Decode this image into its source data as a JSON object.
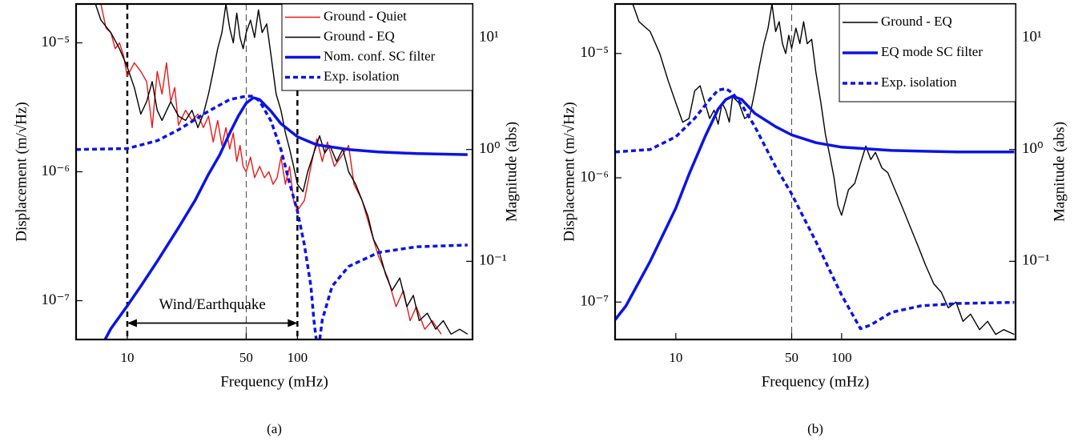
{
  "chart_data": [
    {
      "type": "line",
      "caption": "(a)",
      "xlabel": "Frequency (mHz)",
      "ylabel": "Displacement  (m/√Hz)",
      "y2label": "Magnitude (abs)",
      "log_x": true,
      "log_y": true,
      "legend": "upper right",
      "xlim": [
        5,
        1070
      ],
      "ylim": [
        5e-08,
        2e-05
      ],
      "y2lim": [
        0.02,
        20
      ],
      "xticks": [
        10,
        50,
        100
      ],
      "yticks": [
        {
          "value": 1e-07,
          "label": "10⁻⁷"
        },
        {
          "value": 1e-06,
          "label": "10⁻⁶"
        },
        {
          "value": 1e-05,
          "label": "10⁻⁵"
        }
      ],
      "y2ticks": [
        {
          "value": 0.1,
          "label": "10⁻¹"
        },
        {
          "value": 1,
          "label": "10⁰"
        },
        {
          "value": 10,
          "label": "10¹"
        }
      ],
      "vlines": [
        10,
        50,
        100
      ],
      "vline_styles": [
        "bold",
        "thin",
        "bold"
      ],
      "annotations": [
        {
          "text": "Wind/Earthquake",
          "x": [
            10,
            100
          ],
          "y": 6.7e-08
        }
      ],
      "series": [
        {
          "name": "Ground - Quiet",
          "color": "#e8191a",
          "style": "solid",
          "weight": "thin",
          "x": [
            7,
            7.5,
            8,
            8.5,
            9,
            9.5,
            10,
            11,
            12,
            13,
            14,
            15,
            16,
            17,
            18,
            19,
            20,
            22,
            24,
            26,
            28,
            30,
            32,
            34,
            36,
            38,
            40,
            42,
            44,
            46,
            48,
            50,
            53,
            56,
            60,
            64,
            68,
            72,
            76,
            80,
            85,
            90,
            95,
            100,
            110,
            120,
            130,
            140,
            150,
            165,
            180,
            200,
            215,
            240,
            270,
            300,
            340,
            380,
            420,
            460,
            500,
            560,
            620,
            700
          ],
          "values": [
            2e-05,
            1.3e-05,
            1.2e-05,
            9e-06,
            1e-05,
            8e-06,
            5.5e-06,
            7e-06,
            6e-06,
            5e-06,
            2.2e-06,
            6e-06,
            4e-06,
            7e-06,
            3.5e-06,
            4.5e-06,
            2.3e-06,
            3e-06,
            2.5e-06,
            2.8e-06,
            2.2e-06,
            2.7e-06,
            1.7e-06,
            2.5e-06,
            1.6e-06,
            2.2e-06,
            1.5e-06,
            2e-06,
            1.2e-06,
            1.6e-06,
            1.1e-06,
            1e-06,
            1.3e-06,
            9e-07,
            1.1e-06,
            9e-07,
            1e-06,
            8e-07,
            9e-07,
            1.3e-06,
            8e-07,
            1.1e-06,
            6e-07,
            5e-07,
            6e-07,
            1.1e-06,
            1.8e-06,
            1.2e-06,
            1.7e-06,
            1.1e-06,
            1.3e-06,
            1.6e-06,
            8e-07,
            6e-07,
            3.5e-07,
            2.2e-07,
            1.5e-07,
            9e-08,
            1.2e-07,
            7e-08,
            9e-08,
            6e-08,
            7e-08,
            5.5e-08
          ]
        },
        {
          "name": "Ground - EQ",
          "color": "#000000",
          "style": "solid",
          "weight": "thin",
          "x": [
            6.5,
            7,
            8,
            9,
            10,
            11,
            12,
            13,
            14,
            15,
            16,
            18,
            20,
            22,
            24,
            26,
            28,
            30,
            32,
            34,
            36,
            38,
            40,
            42,
            44,
            46,
            48,
            50,
            53,
            56,
            59,
            62,
            66,
            70,
            75,
            80,
            85,
            90,
            95,
            100,
            108,
            115,
            125,
            135,
            145,
            155,
            170,
            185,
            200,
            220,
            240,
            260,
            280,
            300,
            330,
            360,
            400,
            440,
            480,
            520,
            580,
            650,
            720,
            800,
            900,
            1000
          ],
          "values": [
            2e-05,
            1.5e-05,
            1.2e-05,
            9e-06,
            6.5e-06,
            4.5e-06,
            2.8e-06,
            3.5e-06,
            5e-06,
            3e-06,
            2.5e-06,
            3.5e-06,
            2.7e-06,
            2.5e-06,
            3e-06,
            2.2e-06,
            2.8e-06,
            4e-06,
            6e-06,
            9e-06,
            1.2e-05,
            2e-05,
            1.3e-05,
            1e-05,
            1.7e-05,
            1.1e-05,
            9e-06,
            1.2e-05,
            1.5e-05,
            1.1e-05,
            1.8e-05,
            1.2e-05,
            1.4e-05,
            8e-06,
            4e-06,
            3e-06,
            2e-06,
            1.5e-06,
            1.1e-06,
            8e-07,
            7e-07,
            1e-06,
            1.4e-06,
            1.9e-06,
            1.4e-06,
            1.6e-06,
            1.2e-06,
            1.5e-06,
            1e-06,
            8e-07,
            6e-07,
            4.5e-07,
            3e-07,
            2.5e-07,
            1.6e-07,
            1.2e-07,
            1.5e-07,
            9e-08,
            1.1e-07,
            7e-08,
            8e-08,
            6e-08,
            7e-08,
            5.5e-08,
            6e-08,
            5.5e-08
          ]
        },
        {
          "name": "Nom. conf. SC filter",
          "color": "#0a14e6",
          "style": "solid",
          "weight": "thick",
          "axis": "y2",
          "x": [
            7.4,
            8,
            10,
            12,
            15,
            20,
            25,
            30,
            35,
            40,
            45,
            50,
            55,
            60,
            70,
            80,
            100,
            130,
            200,
            300,
            500,
            1000
          ],
          "values": [
            0.02,
            0.025,
            0.04,
            0.06,
            0.1,
            0.2,
            0.35,
            0.6,
            0.9,
            1.4,
            2,
            2.6,
            2.9,
            2.8,
            2.2,
            1.7,
            1.3,
            1.1,
            1,
            0.95,
            0.92,
            0.9
          ]
        },
        {
          "name": "Exp. isolation",
          "color": "#0a14e6",
          "style": "dotted",
          "weight": "thick",
          "axis": "y2",
          "x": [
            5,
            10,
            15,
            20,
            30,
            40,
            50,
            55,
            60,
            70,
            80,
            90,
            100,
            110,
            120,
            125,
            132,
            140,
            160,
            200,
            300,
            500,
            1000
          ],
          "values": [
            1,
            1.02,
            1.2,
            1.5,
            2.2,
            2.8,
            3,
            3,
            2.7,
            1.8,
            1,
            0.5,
            0.28,
            0.14,
            0.06,
            0.03,
            0.015,
            0.03,
            0.06,
            0.09,
            0.12,
            0.135,
            0.14
          ]
        }
      ]
    },
    {
      "type": "line",
      "caption": "(b)",
      "xlabel": "Frequency (mHz)",
      "ylabel": "Displacement  (m/√Hz)",
      "y2label": "Magnitude (abs)",
      "log_x": true,
      "log_y": true,
      "legend": "upper right",
      "xlim": [
        4.3,
        1120
      ],
      "ylim": [
        5e-08,
        2.5e-05
      ],
      "y2lim": [
        0.02,
        20
      ],
      "xticks": [
        10,
        50,
        100
      ],
      "yticks": [
        {
          "value": 1e-07,
          "label": "10⁻⁷"
        },
        {
          "value": 1e-06,
          "label": "10⁻⁶"
        },
        {
          "value": 1e-05,
          "label": "10⁻⁵"
        }
      ],
      "y2ticks": [
        {
          "value": 0.1,
          "label": "10⁻¹"
        },
        {
          "value": 1,
          "label": "10⁰"
        },
        {
          "value": 10,
          "label": "10¹"
        }
      ],
      "vlines": [
        50
      ],
      "vline_styles": [
        "thin"
      ],
      "series": [
        {
          "name": "Ground - EQ",
          "color": "#000000",
          "style": "solid",
          "weight": "thin",
          "x": [
            5.5,
            6,
            7,
            8,
            9,
            10,
            11,
            12,
            13,
            14,
            15,
            16,
            17,
            18,
            19,
            20,
            21,
            22,
            24,
            26,
            28,
            30,
            32,
            34,
            36,
            38,
            40,
            42,
            44,
            46,
            48,
            50,
            53,
            56,
            59,
            62,
            66,
            70,
            75,
            80,
            85,
            90,
            95,
            100,
            110,
            120,
            130,
            140,
            150,
            160,
            175,
            190,
            210,
            230,
            260,
            290,
            320,
            360,
            400,
            440,
            490,
            540,
            600,
            680,
            760,
            850,
            950,
            1100
          ],
          "values": [
            2.5e-05,
            1.8e-05,
            1.5e-05,
            1e-05,
            6e-06,
            4e-06,
            2.8e-06,
            3e-06,
            5e-06,
            5.5e-06,
            4e-06,
            3e-06,
            3.5e-06,
            2.7e-06,
            4e-06,
            3.5e-06,
            2.8e-06,
            4.5e-06,
            4e-06,
            3e-06,
            3.2e-06,
            5e-06,
            8e-06,
            1.2e-05,
            1.6e-05,
            2.5e-05,
            1.5e-05,
            1.8e-05,
            1.2e-05,
            1e-05,
            1.4e-05,
            1.1e-05,
            1.6e-05,
            1.2e-05,
            1.8e-05,
            1.2e-05,
            1.3e-05,
            7e-06,
            4e-06,
            2.2e-06,
            1.5e-06,
            1e-06,
            6e-07,
            5e-07,
            8e-07,
            9e-07,
            1.3e-06,
            1.8e-06,
            1.4e-06,
            1.6e-06,
            1.2e-06,
            1.1e-06,
            8e-07,
            6e-07,
            4e-07,
            2.8e-07,
            2e-07,
            1.4e-07,
            1.2e-07,
            9e-08,
            1e-07,
            7e-08,
            8e-08,
            6e-08,
            7e-08,
            5.5e-08,
            6e-08,
            5.5e-08
          ]
        },
        {
          "name": "EQ mode SC filter",
          "color": "#0a14e6",
          "style": "solid",
          "weight": "thick",
          "axis": "y2",
          "x": [
            4.3,
            5,
            7,
            10,
            12,
            15,
            18,
            20,
            22,
            25,
            30,
            40,
            50,
            70,
            100,
            200,
            500,
            1100
          ],
          "values": [
            0.03,
            0.04,
            0.1,
            0.3,
            0.6,
            1.3,
            2.3,
            2.8,
            3,
            2.8,
            2.1,
            1.6,
            1.35,
            1.15,
            1.05,
            0.98,
            0.95,
            0.95
          ]
        },
        {
          "name": "Exp. isolation",
          "color": "#0a14e6",
          "style": "dotted",
          "weight": "thick",
          "axis": "y2",
          "x": [
            4.3,
            7,
            10,
            13,
            16,
            18,
            20,
            22,
            25,
            30,
            40,
            50,
            70,
            100,
            130,
            150,
            200,
            300,
            500,
            1100
          ],
          "values": [
            0.95,
            1,
            1.3,
            1.9,
            2.8,
            3.4,
            3.5,
            3.2,
            2.5,
            1.6,
            0.7,
            0.4,
            0.15,
            0.05,
            0.025,
            0.027,
            0.035,
            0.04,
            0.042,
            0.043
          ]
        }
      ]
    }
  ]
}
